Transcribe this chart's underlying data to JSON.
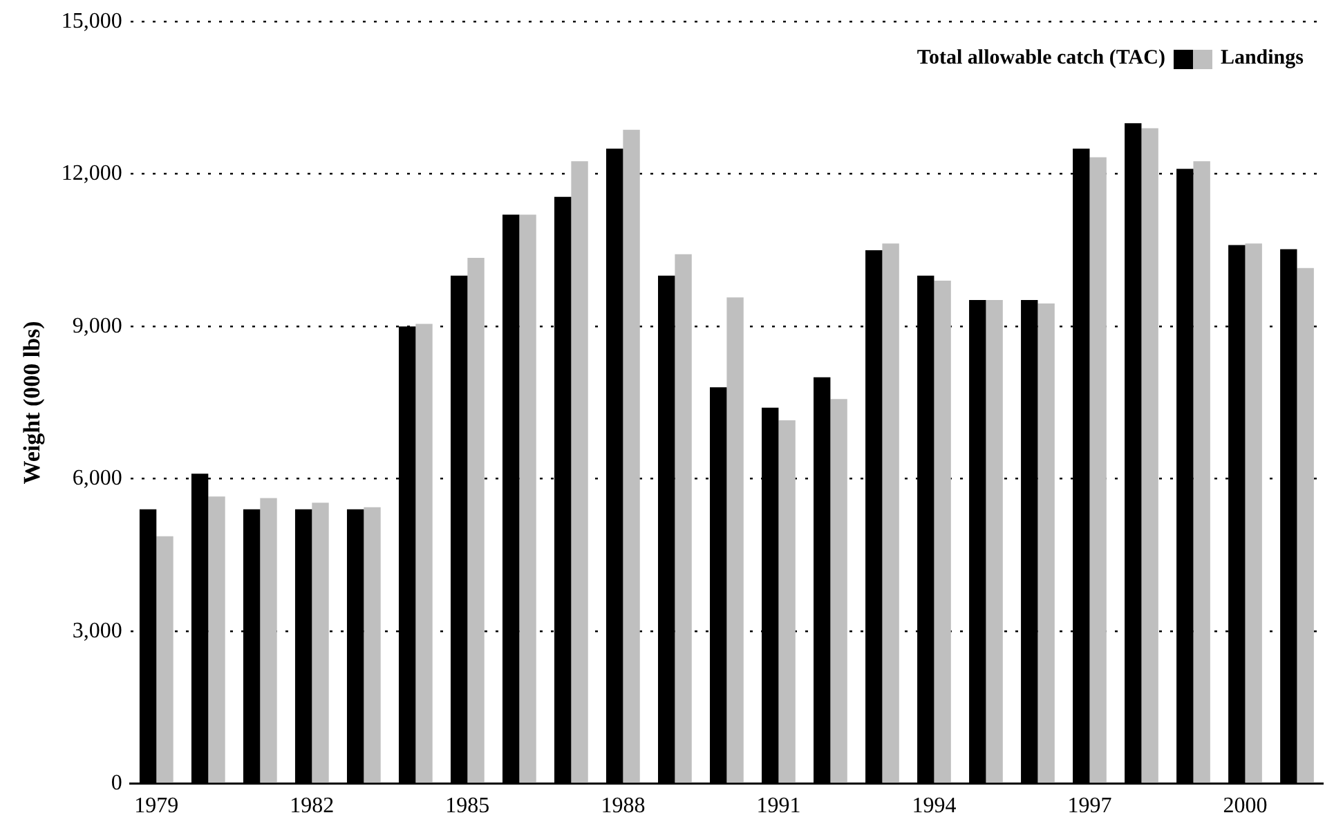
{
  "chart_data": {
    "type": "bar",
    "ylabel": "Weight (000 lbs)",
    "categories": [
      "1979",
      null,
      null,
      "1982",
      null,
      null,
      "1985",
      null,
      null,
      "1988",
      null,
      null,
      "1991",
      null,
      null,
      "1994",
      null,
      null,
      "1997",
      null,
      null,
      "2000",
      null
    ],
    "series": [
      {
        "name": "Total allowable catch (TAC)",
        "color": "#000000",
        "values": [
          5400,
          6100,
          5400,
          5400,
          5400,
          9000,
          10000,
          11200,
          11550,
          12500,
          10000,
          7800,
          7400,
          8000,
          10500,
          10000,
          9520,
          9520,
          12500,
          13000,
          12100,
          10600,
          10520
        ]
      },
      {
        "name": "Landings",
        "color": "#bfbfbf",
        "values": [
          4870,
          5650,
          5620,
          5530,
          5440,
          9050,
          10350,
          11200,
          12250,
          12870,
          10420,
          9570,
          7150,
          7570,
          10630,
          9900,
          9520,
          9450,
          12330,
          12900,
          12250,
          10630,
          10150
        ]
      }
    ],
    "ylim": [
      0,
      15000
    ],
    "yticks": [
      {
        "value": 0,
        "label": "0"
      },
      {
        "value": 3000,
        "label": "3,000"
      },
      {
        "value": 6000,
        "label": "6,000"
      },
      {
        "value": 9000,
        "label": "9,000"
      },
      {
        "value": 12000,
        "label": "12,000"
      },
      {
        "value": 15000,
        "label": "15,000"
      }
    ],
    "grid": "y",
    "legend": "top right"
  }
}
